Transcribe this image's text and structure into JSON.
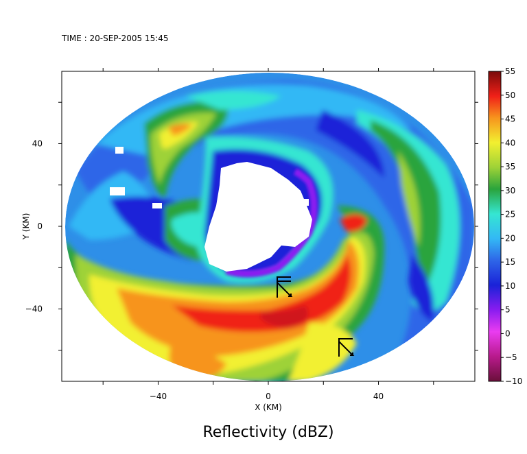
{
  "chart_data": {
    "type": "heatmap",
    "timestamp": "TIME : 20-SEP-2005 15:45",
    "title": "Reflectivity (dBZ)",
    "xlabel": "X (KM)",
    "ylabel": "Y (KM)",
    "xlim": [
      -75,
      75
    ],
    "ylim": [
      -75,
      75
    ],
    "x_ticks": [
      -40,
      0,
      40
    ],
    "y_ticks": [
      40,
      0,
      -40
    ],
    "colorbar": {
      "min": -10,
      "max": 55,
      "ticks": [
        55,
        50,
        45,
        40,
        35,
        30,
        25,
        20,
        15,
        10,
        5,
        0,
        -5,
        -10
      ],
      "colors": [
        {
          "v": -10,
          "c": "#6a0f3a"
        },
        {
          "v": -5,
          "c": "#b81a8c"
        },
        {
          "v": 0,
          "c": "#ea3cf0"
        },
        {
          "v": 5,
          "c": "#8a1cf0"
        },
        {
          "v": 10,
          "c": "#1a22d8"
        },
        {
          "v": 15,
          "c": "#2e66e8"
        },
        {
          "v": 20,
          "c": "#33b8f5"
        },
        {
          "v": 25,
          "c": "#35e6d2"
        },
        {
          "v": 30,
          "c": "#2aa43c"
        },
        {
          "v": 35,
          "c": "#9ed237"
        },
        {
          "v": 40,
          "c": "#f2f030"
        },
        {
          "v": 45,
          "c": "#f7941d"
        },
        {
          "v": 50,
          "c": "#f02018"
        },
        {
          "v": 55,
          "c": "#7a0a0a"
        }
      ]
    }
  }
}
